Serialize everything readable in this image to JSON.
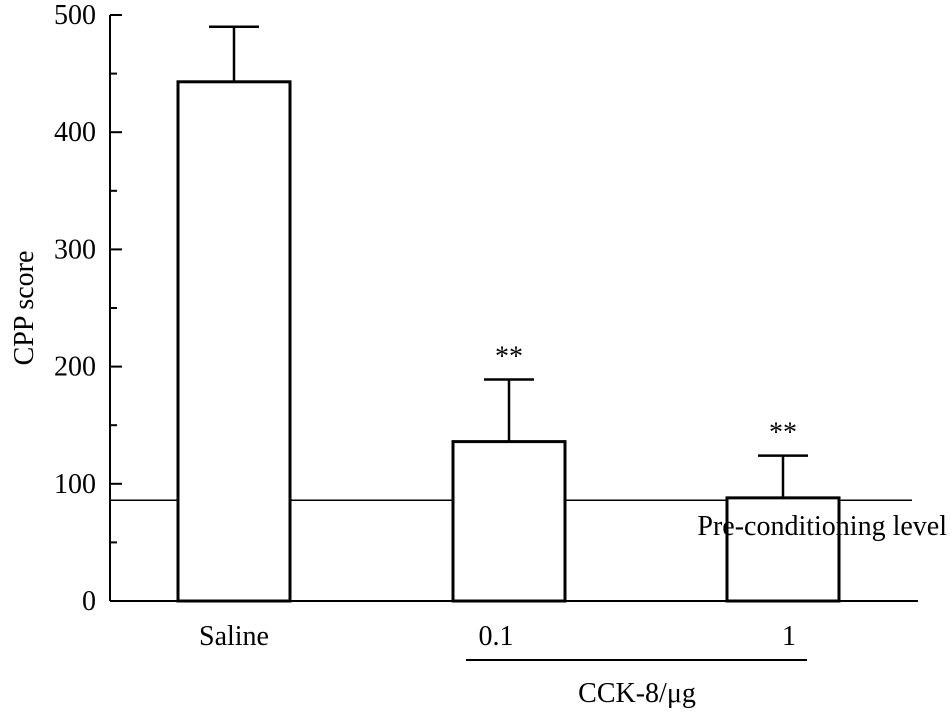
{
  "chart_data": {
    "type": "bar",
    "title": "",
    "ylabel": "CPP score",
    "xlabel": "",
    "ylim": [
      0,
      500
    ],
    "yticks": [
      "0",
      "100",
      "200",
      "300",
      "400",
      "500"
    ],
    "categories": [
      "Saline",
      "0.1",
      "1"
    ],
    "values": [
      443,
      136,
      88
    ],
    "error": [
      47,
      53,
      36
    ],
    "significance": [
      "",
      "**",
      "**"
    ],
    "group_label": "CCK-8/μg",
    "reference_line": {
      "value": 86,
      "label": "Pre-conditioning level"
    }
  }
}
